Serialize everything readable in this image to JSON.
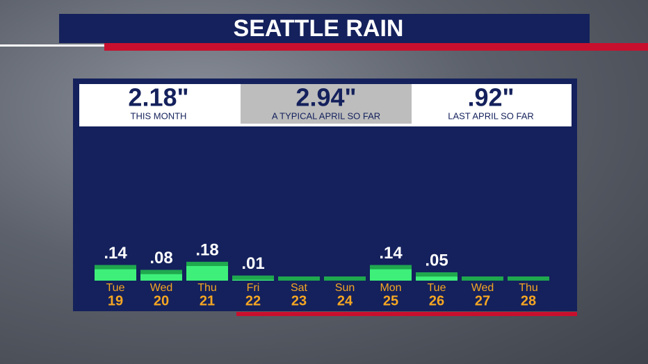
{
  "chart_data": {
    "type": "bar",
    "title": "SEATTLE RAIN",
    "summary": [
      {
        "value": "2.18\"",
        "label": "THIS MONTH"
      },
      {
        "value": "2.94\"",
        "label": "A TYPICAL APRIL SO FAR"
      },
      {
        "value": ".92\"",
        "label": "LAST APRIL SO FAR"
      }
    ],
    "categories": [
      "Tue",
      "Wed",
      "Thu",
      "Fri",
      "Sat",
      "Sun",
      "Mon",
      "Tue",
      "Wed",
      "Thu"
    ],
    "dates": [
      19,
      20,
      21,
      22,
      23,
      24,
      25,
      26,
      27,
      28
    ],
    "values": [
      0.14,
      0.08,
      0.18,
      0.01,
      0,
      0,
      0.14,
      0.05,
      0,
      0
    ],
    "value_labels": [
      ".14",
      ".08",
      ".18",
      ".01",
      null,
      null,
      ".14",
      ".05",
      null,
      null
    ],
    "color": "#3ef07a"
  }
}
